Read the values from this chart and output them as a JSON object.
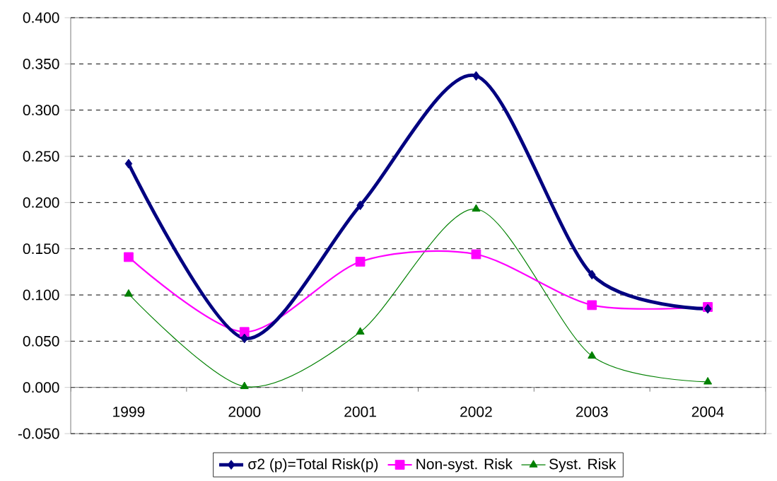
{
  "chart_data": {
    "type": "line",
    "categories": [
      "1999",
      "2000",
      "2001",
      "2002",
      "2003",
      "2004"
    ],
    "series": [
      {
        "name": "σ2 (p)=Total Risk(p)",
        "color": "#000080",
        "marker": "diamond",
        "values": [
          0.242,
          0.053,
          0.197,
          0.337,
          0.122,
          0.085
        ]
      },
      {
        "name": "Non-syst. Risk",
        "color": "#ff00ff",
        "marker": "square",
        "values": [
          0.141,
          0.06,
          0.136,
          0.144,
          0.089,
          0.087
        ]
      },
      {
        "name": "Syst. Risk",
        "color": "#008000",
        "marker": "triangle",
        "values": [
          0.101,
          0.001,
          0.06,
          0.193,
          0.034,
          0.006
        ]
      }
    ],
    "ylim": [
      -0.05,
      0.4
    ],
    "yticks": [
      {
        "value": -0.05,
        "label": "-0.050"
      },
      {
        "value": 0,
        "label": "0.000"
      },
      {
        "value": 0.05,
        "label": "0.050"
      },
      {
        "value": 0.1,
        "label": "0.100"
      },
      {
        "value": 0.15,
        "label": "0.150"
      },
      {
        "value": 0.2,
        "label": "0.200"
      },
      {
        "value": 0.25,
        "label": "0.250"
      },
      {
        "value": 0.3,
        "label": "0.300"
      },
      {
        "value": 0.35,
        "label": "0.350"
      },
      {
        "value": 0.4,
        "label": "0.400"
      }
    ],
    "grid": "y",
    "legend": "bottom",
    "line_style": "solid"
  }
}
